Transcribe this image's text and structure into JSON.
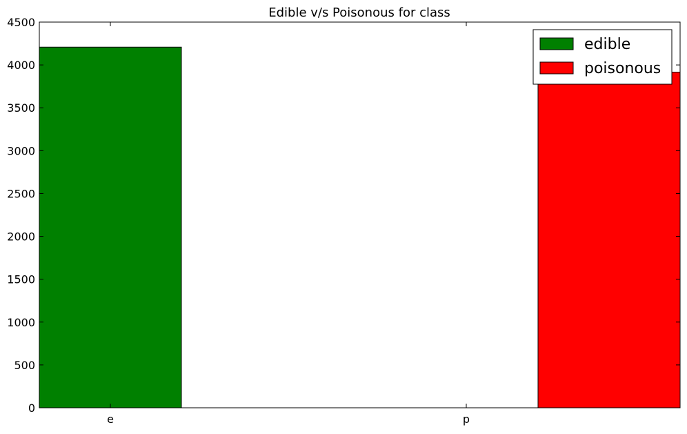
{
  "chart_data": {
    "type": "bar",
    "title": "Edible v/s Poisonous for class",
    "xlabel": "",
    "ylabel": "",
    "categories": [
      "e",
      "p"
    ],
    "series": [
      {
        "name": "edible",
        "color": "#008000",
        "values": [
          4208,
          0
        ]
      },
      {
        "name": "poisonous",
        "color": "#ff0000",
        "values": [
          0,
          3916
        ]
      }
    ],
    "ylim": [
      0,
      4500
    ],
    "yticks": [
      0,
      500,
      1000,
      1500,
      2000,
      2500,
      3000,
      3500,
      4000,
      4500
    ],
    "grid": false,
    "legend_position": "top-right",
    "legend": [
      "edible",
      "poisonous"
    ]
  }
}
